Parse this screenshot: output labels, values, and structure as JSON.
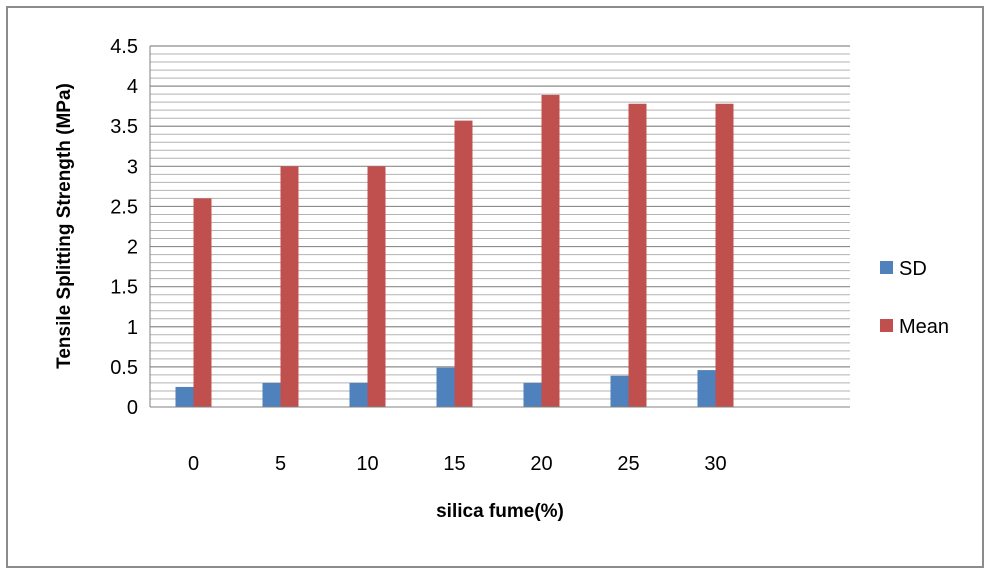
{
  "chart_data": {
    "type": "bar",
    "title": "",
    "xlabel": "silica fume(%)",
    "ylabel": "Tensile Splitting  Strength (MPa)",
    "categories": [
      "0",
      "5",
      "10",
      "15",
      "20",
      "25",
      "30"
    ],
    "series": [
      {
        "name": "SD",
        "color": "#4f81bd",
        "values": [
          0.25,
          0.3,
          0.3,
          0.49,
          0.3,
          0.39,
          0.46
        ]
      },
      {
        "name": "Mean",
        "color": "#c0504d",
        "values": [
          2.6,
          3.0,
          3.0,
          3.57,
          3.89,
          3.78,
          3.78
        ]
      }
    ],
    "ylim": [
      0,
      4.5
    ],
    "yticks": [
      "0",
      "0.5",
      "1",
      "1.5",
      "2",
      "2.5",
      "3",
      "3.5",
      "4",
      "4.5"
    ],
    "grid": true,
    "legend": "right"
  }
}
